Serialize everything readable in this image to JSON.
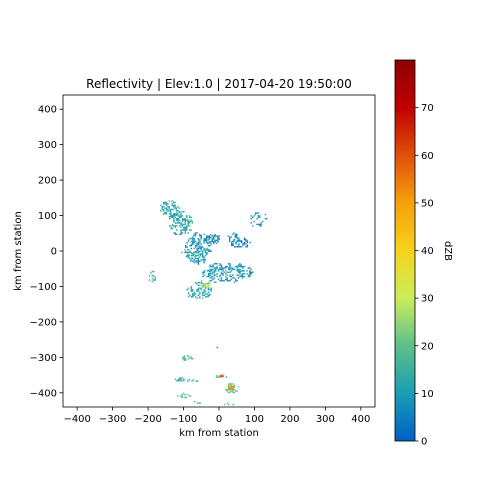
{
  "chart_data": {
    "type": "heatmap",
    "title": "Reflectivity | Elev:1.0 | 2017-04-20 19:50:00",
    "xlabel": "km from station",
    "ylabel": "km from station",
    "xlim": [
      -440,
      440
    ],
    "ylim": [
      -440,
      440
    ],
    "xticks": [
      -400,
      -300,
      -200,
      -100,
      0,
      100,
      200,
      300,
      400
    ],
    "yticks": [
      -400,
      -300,
      -200,
      -100,
      0,
      100,
      200,
      300,
      400
    ],
    "grid": false,
    "colorbar": {
      "label": "dZB",
      "range": [
        0,
        80
      ],
      "ticks": [
        0,
        10,
        20,
        30,
        40,
        50,
        60,
        70
      ],
      "colormap": [
        "#0060c8",
        "#1a9db3",
        "#5cc08a",
        "#c8ee5a",
        "#f8d21c",
        "#f5a00a",
        "#e0500a",
        "#c00000",
        "#8e0000"
      ]
    },
    "echo_regions": [
      {
        "x": -140,
        "y": 120,
        "rx": 30,
        "ry": 25,
        "dbz": 12,
        "density": 0.6
      },
      {
        "x": -110,
        "y": 80,
        "rx": 35,
        "ry": 35,
        "dbz": 12,
        "density": 0.55
      },
      {
        "x": -60,
        "y": 10,
        "rx": 40,
        "ry": 45,
        "dbz": 9,
        "density": 0.55
      },
      {
        "x": -20,
        "y": 35,
        "rx": 25,
        "ry": 15,
        "dbz": 5,
        "density": 0.7
      },
      {
        "x": 60,
        "y": 25,
        "rx": 30,
        "ry": 15,
        "dbz": 6,
        "density": 0.55
      },
      {
        "x": 110,
        "y": 90,
        "rx": 25,
        "ry": 25,
        "dbz": 9,
        "density": 0.3
      },
      {
        "x": 20,
        "y": -60,
        "rx": 75,
        "ry": 30,
        "dbz": 9,
        "density": 0.5
      },
      {
        "x": -60,
        "y": -110,
        "rx": 40,
        "ry": 25,
        "dbz": 12,
        "density": 0.45
      },
      {
        "x": -80,
        "y": -10,
        "rx": 30,
        "ry": 20,
        "dbz": 13,
        "density": 0.4
      },
      {
        "x": -190,
        "y": -70,
        "rx": 12,
        "ry": 18,
        "dbz": 13,
        "density": 0.5
      },
      {
        "x": -40,
        "y": -90,
        "rx": 15,
        "ry": 12,
        "dbz": 22,
        "density": 0.5
      },
      {
        "x": 40,
        "y": 40,
        "rx": 20,
        "ry": 15,
        "dbz": 7,
        "density": 0.5
      },
      {
        "x": -90,
        "y": -300,
        "rx": 18,
        "ry": 10,
        "dbz": 17,
        "density": 0.55
      },
      {
        "x": -110,
        "y": -360,
        "rx": 15,
        "ry": 8,
        "dbz": 16,
        "density": 0.55
      },
      {
        "x": -75,
        "y": -365,
        "rx": 15,
        "ry": 8,
        "dbz": 15,
        "density": 0.5
      },
      {
        "x": -100,
        "y": -405,
        "rx": 22,
        "ry": 10,
        "dbz": 17,
        "density": 0.55
      },
      {
        "x": -60,
        "y": -425,
        "rx": 15,
        "ry": 6,
        "dbz": 16,
        "density": 0.5
      },
      {
        "x": 5,
        "y": -352,
        "rx": 18,
        "ry": 6,
        "dbz": 18,
        "density": 0.65
      },
      {
        "x": 35,
        "y": -385,
        "rx": 22,
        "ry": 16,
        "dbz": 20,
        "density": 0.6
      },
      {
        "x": 25,
        "y": -430,
        "rx": 15,
        "ry": 5,
        "dbz": 17,
        "density": 0.5
      },
      {
        "x": -10,
        "y": -270,
        "rx": 5,
        "ry": 4,
        "dbz": 9,
        "density": 0.4
      }
    ],
    "cores": [
      {
        "x": 35,
        "y": -385,
        "dbz": 55
      },
      {
        "x": 30,
        "y": -380,
        "dbz": 45
      },
      {
        "x": 5,
        "y": -352,
        "dbz": 60
      },
      {
        "x": -35,
        "y": -95,
        "dbz": 32
      }
    ]
  }
}
